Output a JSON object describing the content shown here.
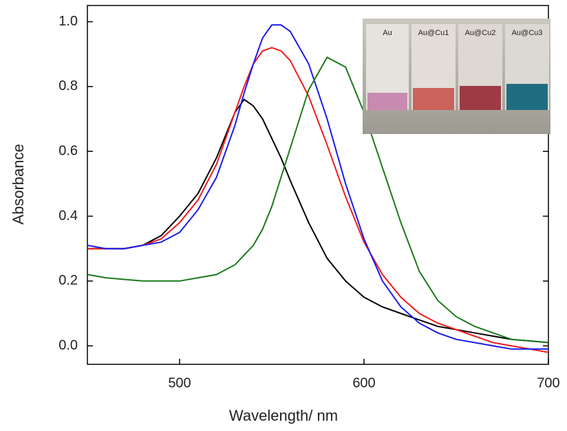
{
  "chart_data": {
    "type": "line",
    "x_label": "Wavelength/ nm",
    "y_label": "Absorbance",
    "x": [
      450,
      460,
      470,
      480,
      490,
      500,
      510,
      520,
      530,
      535,
      540,
      545,
      550,
      555,
      560,
      570,
      580,
      590,
      600,
      610,
      620,
      630,
      640,
      650,
      660,
      670,
      680,
      690,
      700
    ],
    "series": [
      {
        "color": "#000000",
        "values": [
          0.3,
          0.3,
          0.3,
          0.31,
          0.34,
          0.4,
          0.47,
          0.58,
          0.72,
          0.76,
          0.74,
          0.7,
          0.64,
          0.58,
          0.51,
          0.38,
          0.27,
          0.2,
          0.15,
          0.12,
          0.1,
          0.08,
          0.06,
          0.05,
          0.04,
          0.03,
          0.02,
          0.015,
          0.01
        ]
      },
      {
        "color": "#ee1c1c",
        "values": [
          0.3,
          0.3,
          0.3,
          0.31,
          0.33,
          0.38,
          0.45,
          0.56,
          0.72,
          0.8,
          0.87,
          0.91,
          0.92,
          0.91,
          0.88,
          0.77,
          0.62,
          0.46,
          0.32,
          0.22,
          0.15,
          0.1,
          0.07,
          0.05,
          0.03,
          0.01,
          0.0,
          -0.01,
          -0.02
        ]
      },
      {
        "color": "#1a1aee",
        "values": [
          0.31,
          0.3,
          0.3,
          0.31,
          0.32,
          0.35,
          0.42,
          0.52,
          0.68,
          0.78,
          0.87,
          0.95,
          0.99,
          0.99,
          0.97,
          0.87,
          0.7,
          0.5,
          0.33,
          0.2,
          0.12,
          0.07,
          0.04,
          0.02,
          0.01,
          0.0,
          -0.01,
          -0.01,
          -0.01
        ]
      },
      {
        "color": "#1a7a1a",
        "values": [
          0.22,
          0.21,
          0.205,
          0.2,
          0.2,
          0.2,
          0.21,
          0.22,
          0.25,
          0.28,
          0.31,
          0.36,
          0.43,
          0.52,
          0.61,
          0.79,
          0.89,
          0.86,
          0.72,
          0.55,
          0.38,
          0.23,
          0.14,
          0.09,
          0.06,
          0.04,
          0.02,
          0.015,
          0.01
        ]
      }
    ],
    "xlim": [
      450,
      700
    ],
    "xticks": [
      500,
      600,
      700
    ],
    "ylim": [
      -0.057,
      1.05
    ],
    "yticks": [
      {
        "value": 0,
        "label": "0.0"
      },
      0.2,
      0.4,
      0.6,
      0.8,
      {
        "value": 1,
        "label": "1.0"
      }
    ],
    "inset_labels": [
      "Au",
      "Au@Cu1",
      "Au@Cu2",
      "Au@Cu3"
    ]
  }
}
